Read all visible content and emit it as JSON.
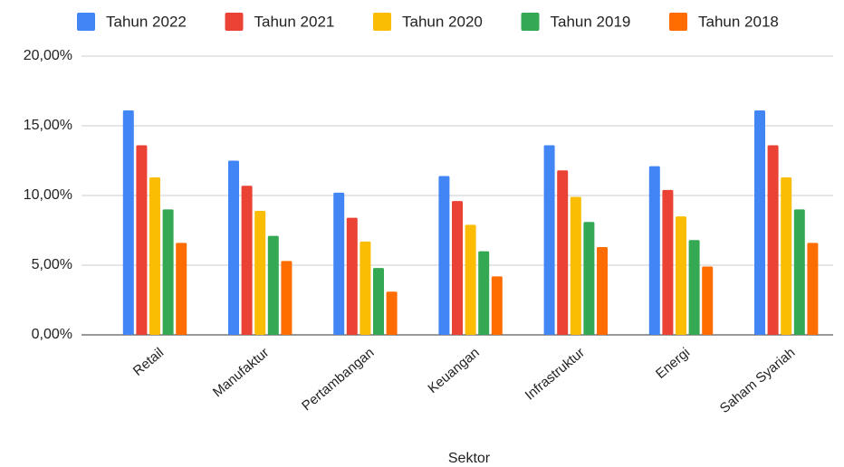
{
  "chart_data": {
    "type": "bar",
    "x_label": "Sektor",
    "categories": [
      "Retail",
      "Manufaktur",
      "Pertambangan",
      "Keuangan",
      "Infrastruktur",
      "Energi",
      "Saham Syariah"
    ],
    "series": [
      {
        "name": "Tahun 2022",
        "color": "#4285f4",
        "values": [
          16.1,
          12.5,
          10.2,
          11.4,
          13.6,
          12.1,
          16.1
        ]
      },
      {
        "name": "Tahun 2021",
        "color": "#ea4335",
        "values": [
          13.6,
          10.7,
          8.4,
          9.6,
          11.8,
          10.4,
          13.6
        ]
      },
      {
        "name": "Tahun 2020",
        "color": "#fbbc04",
        "values": [
          11.3,
          8.9,
          6.7,
          7.9,
          9.9,
          8.5,
          11.3
        ]
      },
      {
        "name": "Tahun 2019",
        "color": "#34a853",
        "values": [
          9.0,
          7.1,
          4.8,
          6.0,
          8.1,
          6.8,
          9.0
        ]
      },
      {
        "name": "Tahun 2018",
        "color": "#ff6d01",
        "values": [
          6.6,
          5.3,
          3.1,
          4.2,
          6.3,
          4.9,
          6.6
        ]
      }
    ],
    "ylim": [
      0,
      20
    ],
    "yticks": [
      {
        "value": 0,
        "label": "0,00%"
      },
      {
        "value": 5,
        "label": "5,00%"
      },
      {
        "value": 10,
        "label": "10,00%"
      },
      {
        "value": 15,
        "label": "15,00%"
      },
      {
        "value": 20,
        "label": "20,00%"
      }
    ],
    "grid": true,
    "legend": "top"
  }
}
